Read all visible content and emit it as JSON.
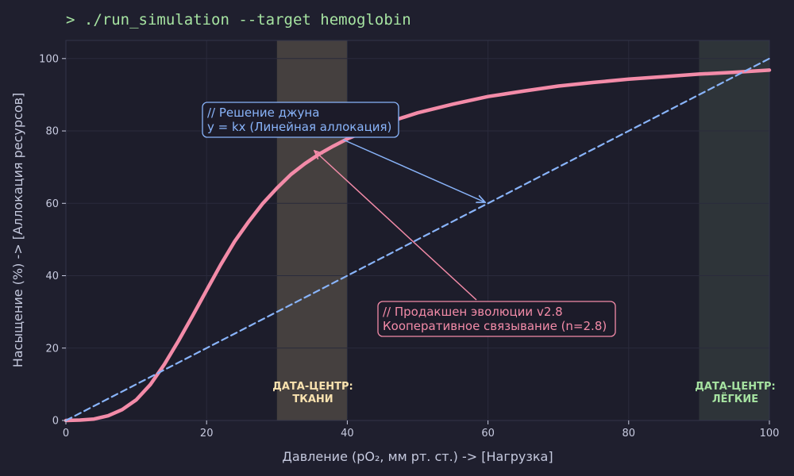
{
  "header": {
    "title": "> ./run_simulation --target hemoglobin"
  },
  "colors": {
    "background": "#1f1f2e",
    "plot_bg": "#1d1d2b",
    "grid": "#2a2b3c",
    "axis": "#3a3b4e",
    "tick_text": "#c8cbe0",
    "label_text": "#c5c9de",
    "title_green": "#a6e3a1",
    "curve_pink": "#f38ba8",
    "line_blue": "#89b4fa",
    "tissue_band": "#45403f",
    "tissue_text": "#f9e2af",
    "lung_band": "#2e3439",
    "lung_text": "#a6e3a1",
    "annotation_bg": "#1c1b29"
  },
  "chart_data": {
    "type": "line",
    "xlabel": "Давление (pO₂, мм рт. ст.) -> [Нагрузка]",
    "ylabel": "Насыщение (%) -> [Аллокация ресурсов]",
    "xlim": [
      0,
      100
    ],
    "ylim": [
      0,
      105
    ],
    "x_ticks": [
      0,
      20,
      40,
      60,
      80,
      100
    ],
    "y_ticks": [
      0,
      20,
      40,
      60,
      80,
      100
    ],
    "grid": true,
    "series": [
      {
        "style": "solid",
        "color": "#f38ba8",
        "points": [
          [
            0,
            0
          ],
          [
            2,
            0.1
          ],
          [
            4,
            0.4
          ],
          [
            6,
            1.3
          ],
          [
            8,
            3.0
          ],
          [
            10,
            5.7
          ],
          [
            12,
            9.9
          ],
          [
            14,
            15.5
          ],
          [
            16,
            22.0
          ],
          [
            18,
            28.9
          ],
          [
            20,
            36.0
          ],
          [
            22,
            43.0
          ],
          [
            24,
            49.5
          ],
          [
            26,
            55.0
          ],
          [
            28,
            60.0
          ],
          [
            30,
            64.2
          ],
          [
            32,
            68.0
          ],
          [
            34,
            71.0
          ],
          [
            36,
            73.6
          ],
          [
            38,
            75.8
          ],
          [
            40,
            77.8
          ],
          [
            45,
            81.9
          ],
          [
            50,
            85.0
          ],
          [
            55,
            87.4
          ],
          [
            60,
            89.5
          ],
          [
            65,
            91.0
          ],
          [
            70,
            92.4
          ],
          [
            75,
            93.4
          ],
          [
            80,
            94.3
          ],
          [
            85,
            95.0
          ],
          [
            90,
            95.7
          ],
          [
            95,
            96.2
          ],
          [
            100,
            96.8
          ]
        ]
      },
      {
        "style": "dashed",
        "color": "#89b4fa",
        "points": [
          [
            0,
            0
          ],
          [
            100,
            100
          ]
        ]
      }
    ],
    "bands": [
      {
        "x0": 30,
        "x1": 40,
        "label_line1": "ДАТА-ЦЕНТР:",
        "label_line2": "ТКАНИ"
      },
      {
        "x0": 90,
        "x1": 100,
        "label_line1": "ДАТА-ЦЕНТР:",
        "label_line2": "ЛЁГКИЕ"
      }
    ],
    "annotations": [
      {
        "line1": "// Решение джуна",
        "line2": "y = kx (Линейная аллокация)",
        "target": [
          60,
          60
        ]
      },
      {
        "line1": "// Продакшен эволюции v2.8",
        "line2": "Кооперативное связывание (n=2.8)",
        "target": [
          35,
          74.5
        ]
      }
    ]
  }
}
